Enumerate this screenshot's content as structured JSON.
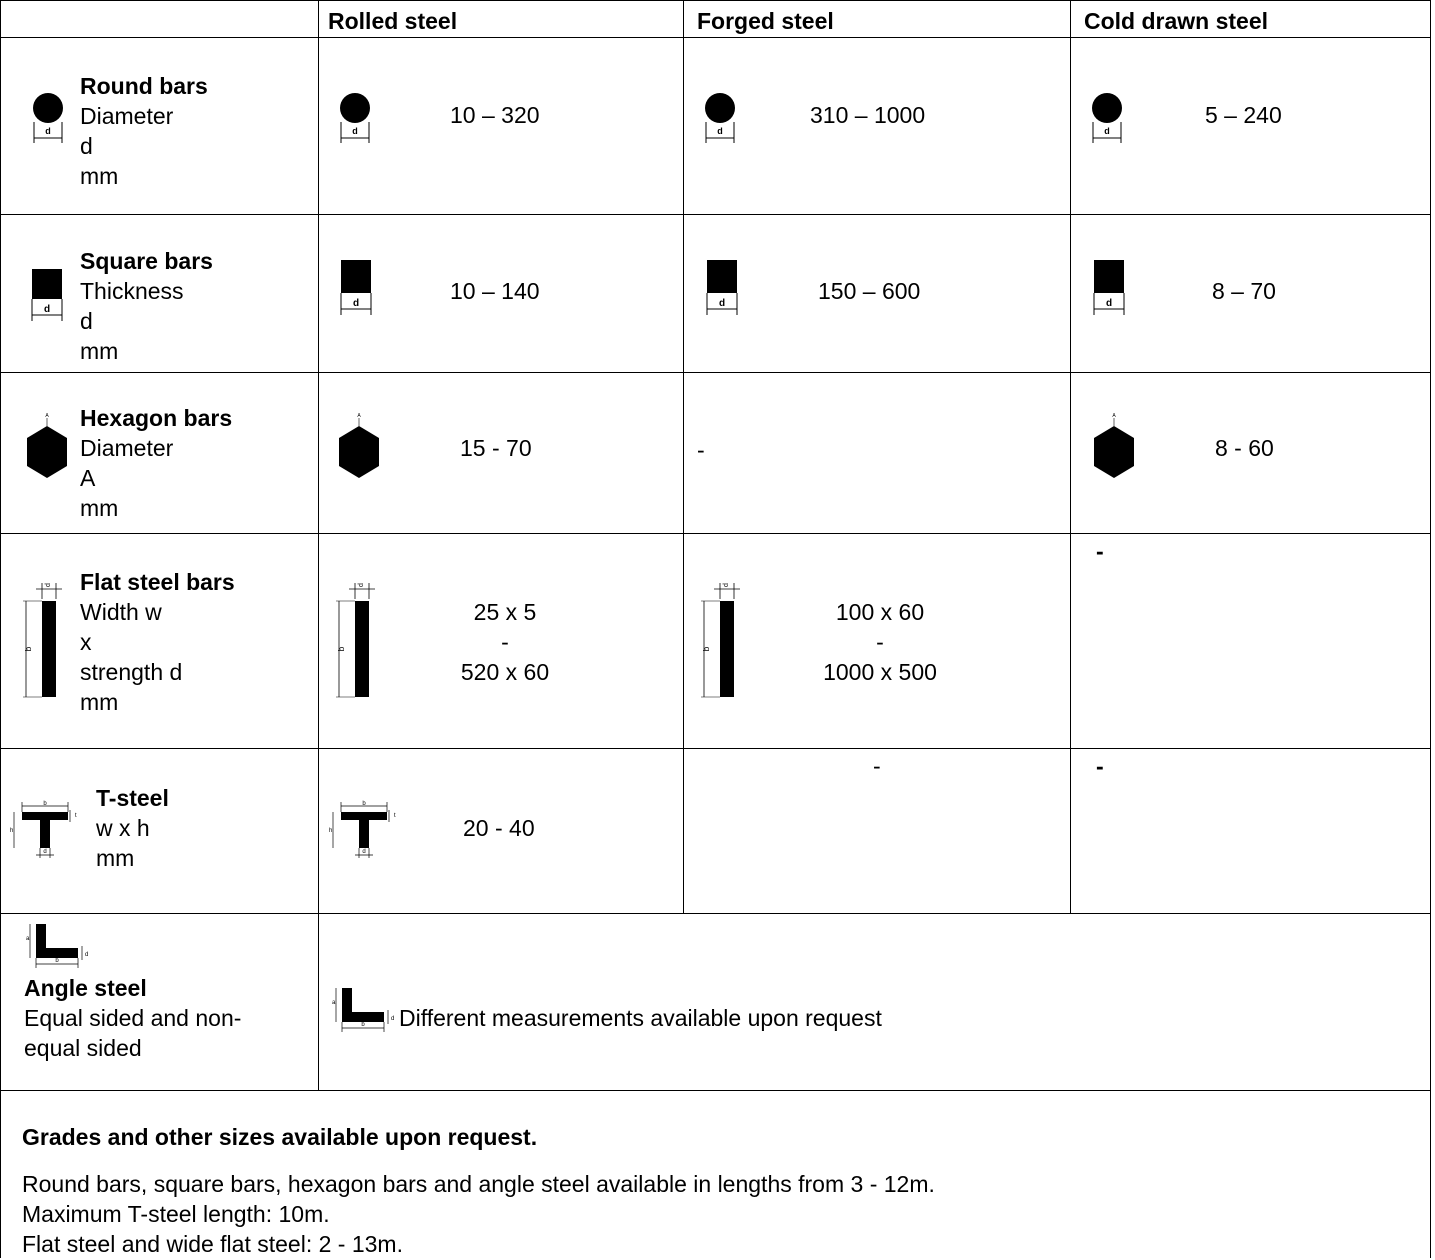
{
  "headers": {
    "rolled": "Rolled steel",
    "forged": "Forged steel",
    "cold": "Cold drawn steel"
  },
  "rows": {
    "round": {
      "title": "Round bars",
      "lines": [
        "Diameter",
        "d",
        "mm"
      ],
      "rolled": "10 – 320",
      "forged": "310 – 1000",
      "cold": "5 – 240"
    },
    "square": {
      "title": "Square bars",
      "lines": [
        "Thickness",
        "d",
        "mm"
      ],
      "rolled": "10 – 140",
      "forged": "150 – 600",
      "cold": "8 – 70"
    },
    "hex": {
      "title": "Hexagon bars",
      "lines": [
        "Diameter",
        "A",
        "mm"
      ],
      "rolled": "15 - 70",
      "forged": "-",
      "cold": "8 - 60"
    },
    "flat": {
      "title": "Flat steel bars",
      "lines": [
        "Width w",
        "x",
        "strength d",
        "mm"
      ],
      "rolled": [
        "25 x 5",
        "-",
        "520 x 60"
      ],
      "forged": [
        "100 x 60",
        "-",
        "1000 x 500"
      ],
      "cold": "-"
    },
    "tsteel": {
      "title": "T-steel",
      "lines": [
        "w x h",
        "mm"
      ],
      "rolled": "20 - 40",
      "forged": "-",
      "cold": "-"
    },
    "angle": {
      "title": "Angle steel",
      "lines": [
        "Equal sided and non-",
        "equal sided"
      ],
      "note": "Different measurements available upon request"
    }
  },
  "footer": {
    "bold": "Grades and other sizes available upon request.",
    "lines": [
      "Round bars, square bars, hexagon bars and angle steel available in lengths from 3 - 12m.",
      "Maximum T-steel length: 10m.",
      "Flat steel and wide flat steel: 2 - 13m."
    ]
  },
  "icon_labels": {
    "d": "d",
    "b": "b",
    "h": "h",
    "t": "t",
    "a": "a",
    "A": "A"
  }
}
